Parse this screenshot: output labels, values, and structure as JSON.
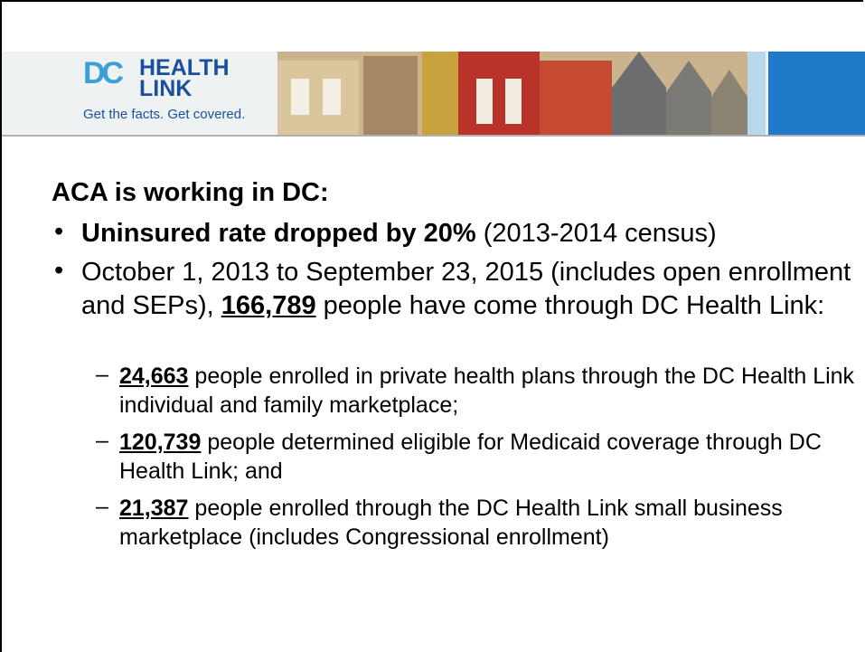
{
  "header": {
    "logo_mark": "DC",
    "logo_line1": "HEALTH",
    "logo_line2": "LINK",
    "tagline": "Get the facts. Get covered."
  },
  "heading": "ACA is working in DC:",
  "bullets": [
    {
      "bold": "Uninsured rate dropped by 20%",
      "text": "(2013-2014 census)"
    },
    {
      "text_before": "October 1, 2013 to September 23, 2015 (includes open enrollment and SEPs),",
      "figure": "166,789",
      "text_after": "people have come through DC Health Link:",
      "sub": [
        {
          "figure": "24,663",
          "text": "people enrolled in private health plans through the DC Health Link individual and family marketplace;"
        },
        {
          "figure": "120,739",
          "text": "people determined eligible for Medicaid coverage through DC Health Link; and"
        },
        {
          "figure": "21,387",
          "text": "people enrolled through the DC Health Link small business marketplace (includes Congressional enrollment)"
        }
      ]
    }
  ]
}
